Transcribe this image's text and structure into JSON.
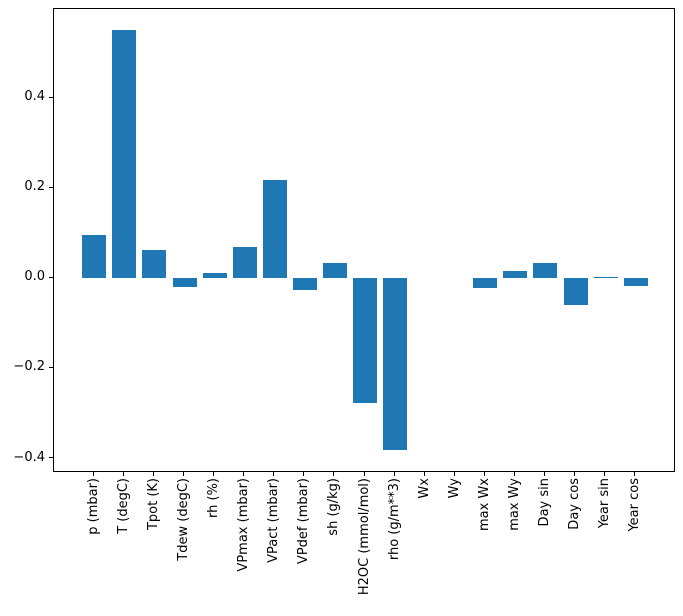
{
  "figure": {
    "background_color": "#ffffff",
    "frame_color": "#000000",
    "tick_color": "#000000",
    "label_color": "#000000"
  },
  "chart_data": {
    "type": "bar",
    "title": "",
    "xlabel": "",
    "ylabel": "",
    "grid": false,
    "legend": "none",
    "bar_color": "#1f77b4",
    "categories": [
      "p (mbar)",
      "T (degC)",
      "Tpot (K)",
      "Tdew (degC)",
      "rh (%)",
      "VPmax (mbar)",
      "VPact (mbar)",
      "VPdef (mbar)",
      "sh (g/kg)",
      "H2OC (mmol/mol)",
      "rho (g/m**3)",
      "Wx",
      "Wy",
      "max Wx",
      "max Wy",
      "Day sin",
      "Day cos",
      "Year sin",
      "Year cos"
    ],
    "values": [
      0.097,
      0.551,
      0.064,
      -0.019,
      0.012,
      0.069,
      0.218,
      -0.026,
      0.034,
      -0.276,
      -0.382,
      0.0,
      0.0,
      -0.022,
      0.016,
      0.034,
      -0.059,
      0.004,
      -0.018
    ],
    "bar_width_units": 0.8,
    "xlim": [
      -1.34,
      19.34
    ],
    "ylim": [
      -0.432,
      0.598
    ],
    "ytick_values": [
      0.4,
      0.2,
      0.0,
      -0.2,
      -0.4
    ],
    "ytick_labels": [
      "0.4",
      "0.2",
      "0.0",
      "−0.2",
      "−0.4"
    ],
    "x_tick_label_rotation_deg": 90
  }
}
